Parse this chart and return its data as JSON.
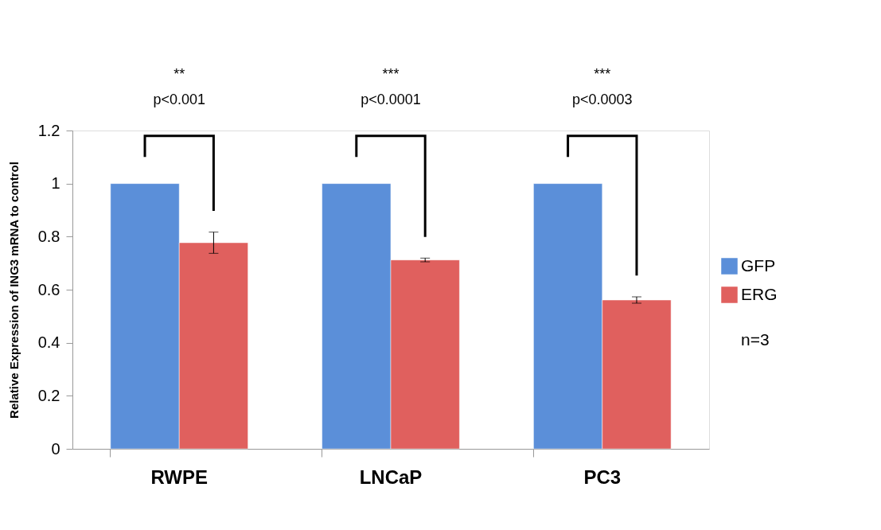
{
  "chart_data": {
    "type": "bar",
    "ylabel": "Relative Expression of  ING3 mRNA  to control",
    "categories": [
      "RWPE",
      "LNCaP",
      "PC3"
    ],
    "series": [
      {
        "name": "GFP",
        "color": "#5b8fd9",
        "values": [
          1,
          1,
          1
        ]
      },
      {
        "name": "ERG",
        "color": "#e0605e",
        "values": [
          0.777,
          0.712,
          0.561
        ],
        "errors": [
          0.04,
          0.007,
          0.012
        ]
      }
    ],
    "ylim": [
      0,
      1.2
    ],
    "yticks": [
      0,
      0.2,
      0.4,
      0.6,
      0.8,
      1,
      1.2
    ],
    "grid": false,
    "legend": "right",
    "annotations": [
      "**",
      "p<0.001",
      "***",
      "p<0.0001",
      "***",
      "p<0.0003",
      "n=3"
    ]
  }
}
